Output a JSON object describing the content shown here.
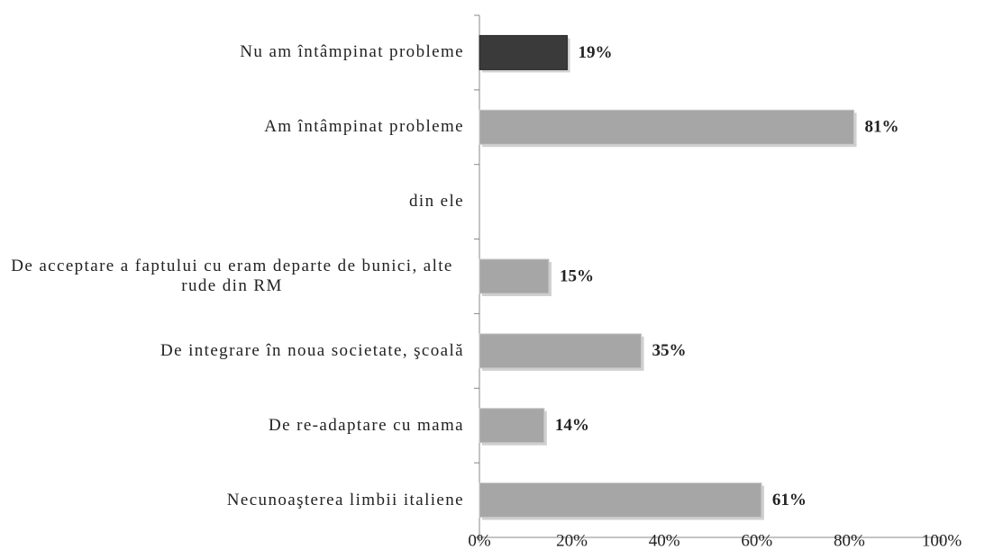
{
  "chart_data": {
    "type": "barh",
    "categories": [
      "Nu am întâmpinat probleme",
      "Am întâmpinat probleme",
      "din ele",
      "De acceptare a faptului cu eram departe de bunici, alte rude din RM",
      "De integrare în noua societate, şcoală",
      "De re-adaptare cu mama",
      "Necunoaşterea limbii italiene"
    ],
    "values": [
      19,
      81,
      null,
      15,
      35,
      14,
      61
    ],
    "value_labels": [
      "19%",
      "81%",
      null,
      "15%",
      "35%",
      "14%",
      "61%"
    ],
    "colors": [
      "#3a3a3a",
      "#a6a6a6",
      "#a6a6a6",
      "#a6a6a6",
      "#a6a6a6",
      "#a6a6a6",
      "#a6a6a6"
    ],
    "xlim": [
      0,
      100
    ],
    "xticks": [
      {
        "value": 0,
        "label": "0%"
      },
      {
        "value": 20,
        "label": "20%"
      },
      {
        "value": 40,
        "label": "40%"
      },
      {
        "value": 60,
        "label": "60%"
      },
      {
        "value": 80,
        "label": "80%"
      },
      {
        "value": 100,
        "label": "100%"
      }
    ],
    "grid": false
  }
}
